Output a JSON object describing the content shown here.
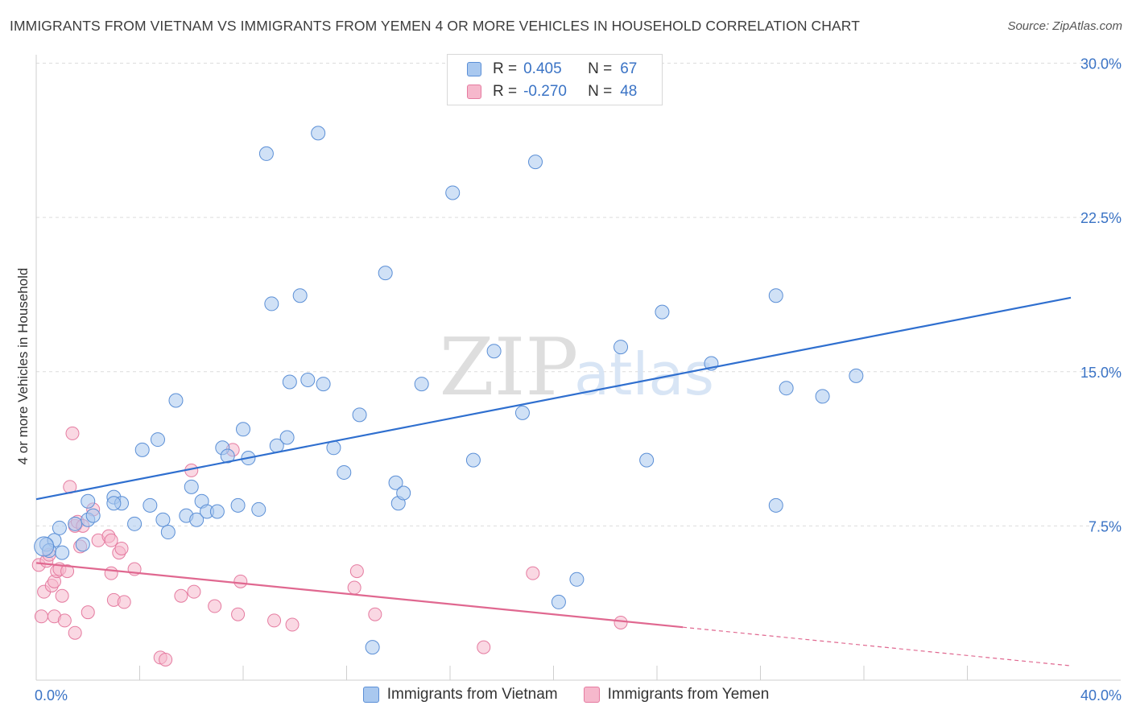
{
  "title": "IMMIGRANTS FROM VIETNAM VS IMMIGRANTS FROM YEMEN 4 OR MORE VEHICLES IN HOUSEHOLD CORRELATION CHART",
  "source": "Source: ZipAtlas.com",
  "watermark": {
    "zip": "ZIP",
    "atlas": "atlas"
  },
  "legend": {
    "rows": [
      {
        "r_label": "R =",
        "r_value": "0.405",
        "n_label": "N =",
        "n_value": "67"
      },
      {
        "r_label": "R =",
        "r_value": "-0.270",
        "n_label": "N =",
        "n_value": "48"
      }
    ]
  },
  "colors": {
    "vietnam_fill": "#a9c8ef",
    "vietnam_stroke": "#5b8fd6",
    "vietnam_line": "#2f6fcf",
    "yemen_fill": "#f6b8cc",
    "yemen_stroke": "#e57ba0",
    "yemen_line": "#e06890",
    "grid": "#dcdcdc",
    "axis_text": "#3a73c5"
  },
  "chart_data": {
    "type": "scatter",
    "title": "IMMIGRANTS FROM VIETNAM VS IMMIGRANTS FROM YEMEN 4 OR MORE VEHICLES IN HOUSEHOLD CORRELATION CHART",
    "ylabel": "4 or more Vehicles in Household",
    "xlabel": "",
    "xlim": [
      0,
      40
    ],
    "ylim": [
      0,
      31
    ],
    "x_tick_labels": [
      "0.0%",
      "40.0%"
    ],
    "y_ticks": [
      {
        "value": 7.5,
        "label": "7.5%"
      },
      {
        "value": 15.0,
        "label": "15.0%"
      },
      {
        "value": 22.5,
        "label": "22.5%"
      },
      {
        "value": 30.0,
        "label": "30.0%"
      }
    ],
    "x_minor_ticks": [
      4,
      8,
      12,
      16,
      20,
      24,
      28,
      32,
      36
    ],
    "grid": true,
    "series": [
      {
        "name": "Immigrants from Vietnam",
        "r": 0.405,
        "n": 67,
        "trend": {
          "x": [
            0,
            40
          ],
          "y": [
            8.8,
            18.6
          ],
          "dashed_from": null
        },
        "points": [
          [
            0.4,
            6.6
          ],
          [
            0.7,
            6.8
          ],
          [
            0.5,
            6.3
          ],
          [
            1.0,
            6.2
          ],
          [
            0.9,
            7.4
          ],
          [
            1.5,
            7.6
          ],
          [
            1.8,
            6.6
          ],
          [
            2.0,
            7.8
          ],
          [
            2.2,
            8.0
          ],
          [
            2.0,
            8.7
          ],
          [
            3.0,
            8.9
          ],
          [
            3.3,
            8.6
          ],
          [
            3.0,
            8.6
          ],
          [
            3.8,
            7.6
          ],
          [
            4.4,
            8.5
          ],
          [
            4.1,
            11.2
          ],
          [
            4.7,
            11.7
          ],
          [
            4.9,
            7.8
          ],
          [
            5.1,
            7.2
          ],
          [
            5.4,
            13.6
          ],
          [
            5.8,
            8.0
          ],
          [
            6.0,
            9.4
          ],
          [
            6.2,
            7.8
          ],
          [
            6.4,
            8.7
          ],
          [
            6.6,
            8.2
          ],
          [
            7.0,
            8.2
          ],
          [
            7.2,
            11.3
          ],
          [
            7.4,
            10.9
          ],
          [
            7.8,
            8.5
          ],
          [
            8.0,
            12.2
          ],
          [
            8.2,
            10.8
          ],
          [
            8.6,
            8.3
          ],
          [
            8.9,
            25.6
          ],
          [
            9.1,
            18.3
          ],
          [
            9.3,
            11.4
          ],
          [
            9.7,
            11.8
          ],
          [
            9.8,
            14.5
          ],
          [
            10.2,
            18.7
          ],
          [
            10.5,
            14.6
          ],
          [
            10.9,
            26.6
          ],
          [
            11.1,
            14.4
          ],
          [
            11.5,
            11.3
          ],
          [
            11.9,
            10.1
          ],
          [
            12.5,
            12.9
          ],
          [
            13.0,
            1.6
          ],
          [
            13.5,
            19.8
          ],
          [
            13.9,
            9.6
          ],
          [
            14.0,
            8.6
          ],
          [
            14.2,
            9.1
          ],
          [
            14.9,
            14.4
          ],
          [
            16.1,
            23.7
          ],
          [
            16.9,
            10.7
          ],
          [
            17.7,
            16.0
          ],
          [
            18.8,
            13.0
          ],
          [
            19.3,
            25.2
          ],
          [
            20.2,
            3.8
          ],
          [
            20.9,
            4.9
          ],
          [
            22.6,
            16.2
          ],
          [
            23.6,
            10.7
          ],
          [
            24.2,
            17.9
          ],
          [
            26.1,
            15.4
          ],
          [
            28.6,
            8.5
          ],
          [
            28.6,
            18.7
          ],
          [
            29.0,
            14.2
          ],
          [
            30.4,
            13.8
          ],
          [
            31.7,
            14.8
          ],
          [
            0.3,
            6.5
          ]
        ]
      },
      {
        "name": "Immigrants from Yemen",
        "r": -0.27,
        "n": 48,
        "trend": {
          "x": [
            0,
            40
          ],
          "y": [
            5.7,
            0.7
          ],
          "dashed_from": 25
        },
        "points": [
          [
            0.1,
            5.6
          ],
          [
            0.2,
            3.1
          ],
          [
            0.3,
            4.3
          ],
          [
            0.4,
            5.8
          ],
          [
            0.5,
            6.1
          ],
          [
            0.6,
            4.6
          ],
          [
            0.7,
            4.8
          ],
          [
            0.7,
            3.1
          ],
          [
            0.8,
            5.3
          ],
          [
            0.9,
            5.4
          ],
          [
            1.0,
            4.1
          ],
          [
            1.1,
            2.9
          ],
          [
            1.2,
            5.3
          ],
          [
            1.3,
            9.4
          ],
          [
            1.4,
            12.0
          ],
          [
            1.5,
            7.5
          ],
          [
            1.5,
            2.3
          ],
          [
            1.6,
            7.7
          ],
          [
            1.7,
            6.5
          ],
          [
            2.0,
            3.3
          ],
          [
            2.2,
            8.3
          ],
          [
            2.4,
            6.8
          ],
          [
            2.8,
            7.0
          ],
          [
            2.9,
            6.8
          ],
          [
            2.9,
            5.2
          ],
          [
            3.0,
            3.9
          ],
          [
            3.2,
            6.2
          ],
          [
            3.3,
            6.4
          ],
          [
            3.4,
            3.8
          ],
          [
            3.8,
            5.4
          ],
          [
            4.8,
            1.1
          ],
          [
            5.0,
            1.0
          ],
          [
            5.6,
            4.1
          ],
          [
            6.0,
            10.2
          ],
          [
            6.1,
            4.3
          ],
          [
            6.9,
            3.6
          ],
          [
            7.6,
            11.2
          ],
          [
            7.8,
            3.2
          ],
          [
            7.9,
            4.8
          ],
          [
            9.2,
            2.9
          ],
          [
            9.9,
            2.7
          ],
          [
            12.3,
            4.5
          ],
          [
            12.4,
            5.3
          ],
          [
            13.1,
            3.2
          ],
          [
            17.3,
            1.6
          ],
          [
            19.2,
            5.2
          ],
          [
            22.6,
            2.8
          ],
          [
            1.8,
            7.5
          ]
        ]
      }
    ]
  }
}
